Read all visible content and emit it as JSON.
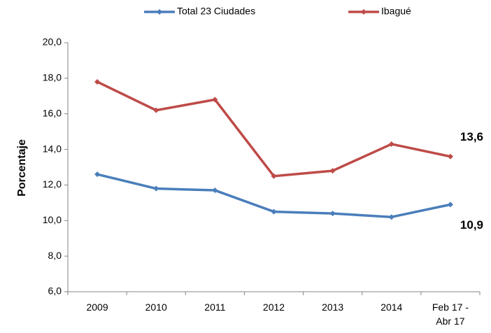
{
  "chart_data": {
    "type": "line",
    "y_label": "Porcentaje",
    "categories": [
      "2009",
      "2010",
      "2011",
      "2012",
      "2013",
      "2014",
      "Feb 17 - Abr 17"
    ],
    "series": [
      {
        "name": "Total 23 Ciudades",
        "color": "#4a7ebb",
        "values": [
          12.6,
          11.8,
          11.7,
          10.5,
          10.4,
          10.2,
          10.9
        ],
        "value_labels": [
          null,
          null,
          null,
          null,
          null,
          null,
          "10,9"
        ],
        "label_color": "#0070c0"
      },
      {
        "name": "Ibagué",
        "color": "#be4b48",
        "values": [
          17.8,
          16.2,
          16.8,
          12.5,
          12.8,
          14.3,
          13.6
        ],
        "value_labels": [
          null,
          null,
          null,
          null,
          null,
          null,
          "13,6"
        ],
        "label_color": "#ee1111"
      }
    ],
    "ylim": [
      6,
      20
    ],
    "yticks": [
      {
        "value": 6,
        "label": "6,0"
      },
      {
        "value": 8,
        "label": "8,0"
      },
      {
        "value": 10,
        "label": "10,0"
      },
      {
        "value": 12,
        "label": "12,0"
      },
      {
        "value": 14,
        "label": "14,0"
      },
      {
        "value": 16,
        "label": "16,0"
      },
      {
        "value": 18,
        "label": "18,0"
      },
      {
        "value": 20,
        "label": "20,0"
      }
    ],
    "legend": "top"
  }
}
